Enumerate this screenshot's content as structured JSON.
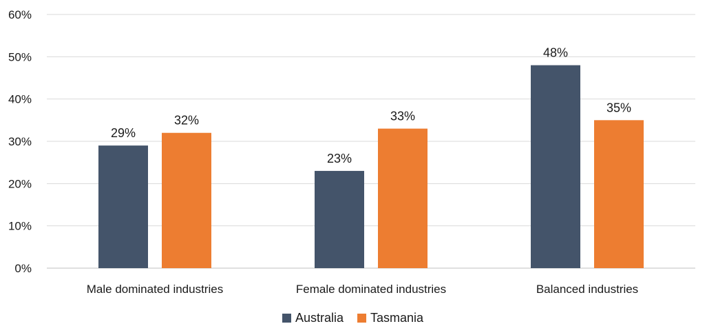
{
  "chart_data": {
    "type": "bar",
    "categories": [
      "Male dominated industries",
      "Female dominated industries",
      "Balanced industries"
    ],
    "series": [
      {
        "name": "Australia",
        "values": [
          29,
          23,
          48
        ],
        "labels": [
          "29%",
          "23%",
          "48%"
        ],
        "color": "#44546a"
      },
      {
        "name": "Tasmania",
        "values": [
          32,
          33,
          35
        ],
        "labels": [
          "32%",
          "33%",
          "35%"
        ],
        "color": "#ed7d31"
      }
    ],
    "y_ticks": [
      "0%",
      "10%",
      "20%",
      "30%",
      "40%",
      "50%",
      "60%"
    ],
    "ylim": [
      0,
      60
    ],
    "grid": true,
    "legend_position": "bottom",
    "title": "",
    "xlabel": "",
    "ylabel": ""
  }
}
